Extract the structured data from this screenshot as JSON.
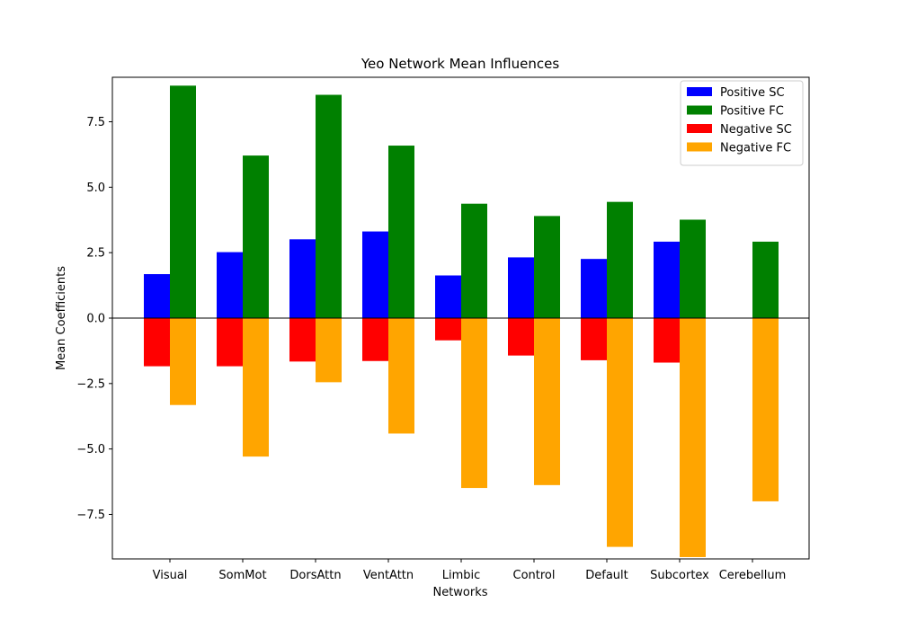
{
  "chart_data": {
    "type": "bar",
    "title": "Yeo Network Mean Influences",
    "xlabel": "Networks",
    "ylabel": "Mean Coefficients",
    "categories": [
      "Visual",
      "SomMot",
      "DorsAttn",
      "VentAttn",
      "Limbic",
      "Control",
      "Default",
      "Subcortex",
      "Cerebellum"
    ],
    "ylim": [
      -9.2,
      9.2
    ],
    "yticks": [
      -7.5,
      -5.0,
      -2.5,
      0.0,
      2.5,
      5.0,
      7.5
    ],
    "ytick_labels": [
      "−7.5",
      "−5.0",
      "−2.5",
      "0.0",
      "2.5",
      "5.0",
      "7.5"
    ],
    "grid": false,
    "zero_line": true,
    "legend_position": "top-right",
    "series": [
      {
        "name": "Positive SC",
        "color": "#0000ff",
        "offset": -1,
        "values": [
          1.68,
          2.52,
          3.01,
          3.31,
          1.63,
          2.32,
          2.26,
          2.92,
          null
        ]
      },
      {
        "name": "Positive FC",
        "color": "#008000",
        "offset": 1,
        "values": [
          8.88,
          6.21,
          8.53,
          6.59,
          4.37,
          3.9,
          4.44,
          3.76,
          2.92
        ]
      },
      {
        "name": "Negative SC",
        "color": "#ff0000",
        "offset": -1,
        "values": [
          -1.84,
          -1.84,
          -1.66,
          -1.64,
          -0.85,
          -1.43,
          -1.61,
          -1.7,
          null
        ]
      },
      {
        "name": "Negative FC",
        "color": "#ffa500",
        "offset": 1,
        "values": [
          -3.32,
          -5.29,
          -2.45,
          -4.41,
          -6.49,
          -6.38,
          -8.74,
          -9.13,
          -7.0
        ]
      }
    ]
  }
}
